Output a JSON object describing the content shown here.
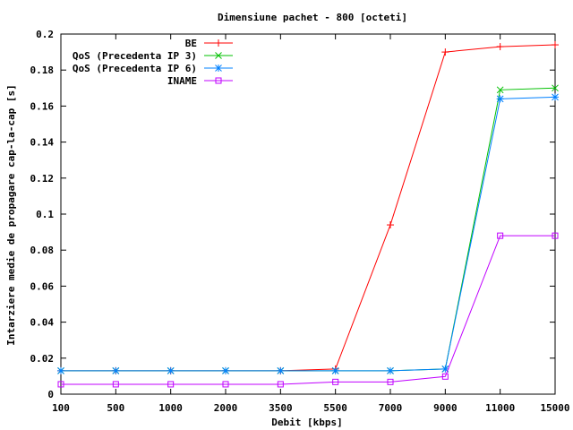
{
  "chart_data": {
    "type": "line",
    "title": "Dimensiune pachet - 800 [octeti]",
    "xlabel": "Debit [kbps]",
    "ylabel": "Intarziere medie de propagare cap-la-cap [s]",
    "categories": [
      "100",
      "500",
      "1000",
      "2000",
      "3500",
      "5500",
      "7000",
      "9000",
      "11000",
      "15000"
    ],
    "ylim": [
      0,
      0.2
    ],
    "yticks": [
      "0",
      "0.02",
      "0.04",
      "0.06",
      "0.08",
      "0.1",
      "0.12",
      "0.14",
      "0.16",
      "0.18",
      "0.2"
    ],
    "legend_position": "top-left",
    "grid": false,
    "series": [
      {
        "name": "BE",
        "color": "#ff0000",
        "marker": "plus",
        "values": [
          0.013,
          0.013,
          0.013,
          0.013,
          0.013,
          0.014,
          0.094,
          0.19,
          0.193,
          0.194
        ]
      },
      {
        "name": "QoS (Precedenta IP 3)",
        "color": "#00c000",
        "marker": "cross",
        "values": [
          0.013,
          0.013,
          0.013,
          0.013,
          0.013,
          0.013,
          0.013,
          0.014,
          0.169,
          0.17
        ]
      },
      {
        "name": "QoS (Precedenta IP 6)",
        "color": "#0080ff",
        "marker": "star",
        "values": [
          0.013,
          0.013,
          0.013,
          0.013,
          0.013,
          0.013,
          0.013,
          0.014,
          0.164,
          0.165
        ]
      },
      {
        "name": "INAME",
        "color": "#c000ff",
        "marker": "square",
        "values": [
          0.0055,
          0.0055,
          0.0055,
          0.0055,
          0.0055,
          0.0068,
          0.0068,
          0.0098,
          0.088,
          0.088
        ]
      }
    ]
  }
}
